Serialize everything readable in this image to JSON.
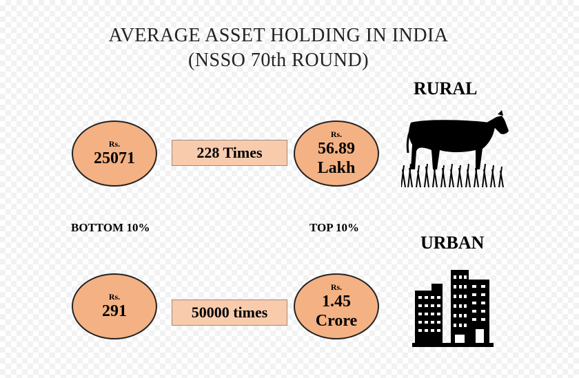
{
  "title": {
    "line1": "AVERAGE ASSET HOLDING IN INDIA",
    "line2": "(NSSO 70th ROUND)"
  },
  "labels": {
    "bottom": "BOTTOM 10%",
    "top": "TOP 10%"
  },
  "rural": {
    "heading": "RURAL",
    "bottom": {
      "currency": "Rs.",
      "value": "25071"
    },
    "ratio": "228 Times",
    "top": {
      "currency": "Rs.",
      "value_line1": "56.89",
      "value_line2": "Lakh"
    },
    "icon": "cow-icon"
  },
  "urban": {
    "heading": "URBAN",
    "bottom": {
      "currency": "Rs.",
      "value": "291"
    },
    "ratio": "50000 times",
    "top": {
      "currency": "Rs.",
      "value_line1": "1.45",
      "value_line2": "Crore"
    },
    "icon": "buildings-icon"
  },
  "colors": {
    "circle_fill": "#f4b183",
    "box_fill": "#f8cbad",
    "outline": "#222222"
  }
}
